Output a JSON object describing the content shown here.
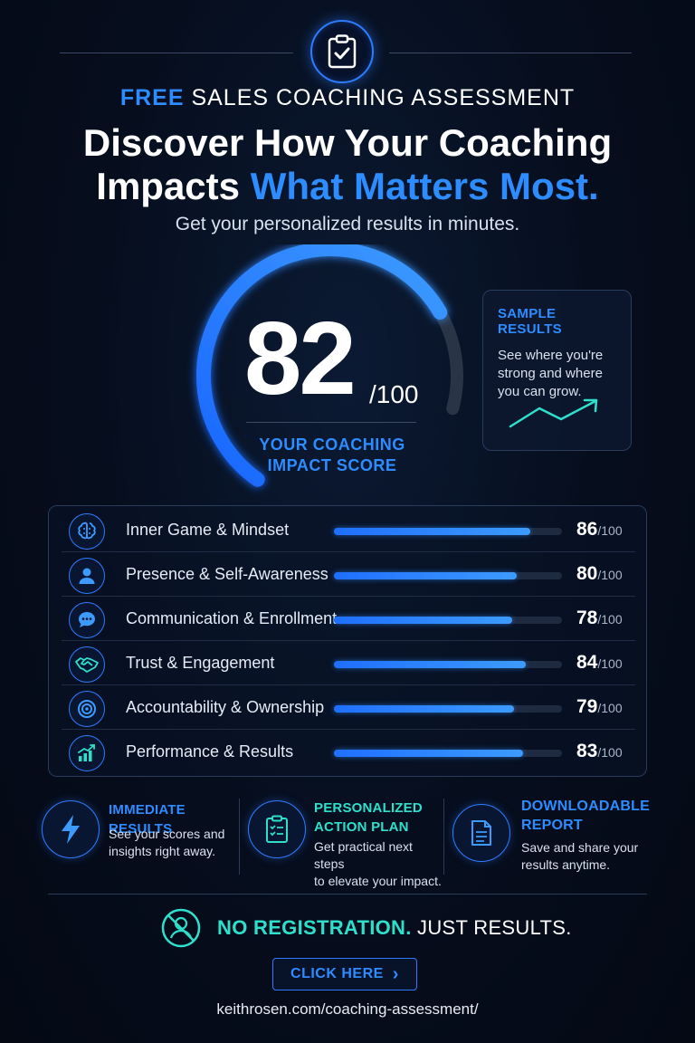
{
  "header": {
    "eyebrow_accent": "FREE",
    "eyebrow_rest": "SALES COACHING ASSESSMENT",
    "headline_line1": "Discover How Your Coaching",
    "headline_line2_white": "Impacts",
    "headline_line2_blue": "What Matters Most.",
    "subhead": "Get your personalized results in minutes."
  },
  "score": {
    "value": "82",
    "max": "/100",
    "fraction": 0.82,
    "label_line1": "YOUR COACHING",
    "label_line2": "IMPACT SCORE"
  },
  "sample": {
    "title": "SAMPLE RESULTS",
    "text": "See where you're strong and where you can grow."
  },
  "metrics": [
    {
      "label": "Inner Game & Mindset",
      "score": "86",
      "max": "/100",
      "value": 86,
      "icon": "brain-icon"
    },
    {
      "label": "Presence & Self-Awareness",
      "score": "80",
      "max": "/100",
      "value": 80,
      "icon": "person-icon"
    },
    {
      "label": "Communication & Enrollment",
      "score": "78",
      "max": "/100",
      "value": 78,
      "icon": "chat-bubble-icon"
    },
    {
      "label": "Trust & Engagement",
      "score": "84",
      "max": "/100",
      "value": 84,
      "icon": "handshake-icon"
    },
    {
      "label": "Accountability & Ownership",
      "score": "79",
      "max": "/100",
      "value": 79,
      "icon": "target-icon"
    },
    {
      "label": "Performance & Results",
      "score": "83",
      "max": "/100",
      "value": 83,
      "icon": "growth-chart-icon"
    }
  ],
  "features": [
    {
      "title_line1": "IMMEDIATE RESULTS",
      "title_line2": "",
      "text_line1": "See your scores and",
      "text_line2": "insights right away.",
      "color": "#2d8cff",
      "icon": "lightning-icon"
    },
    {
      "title_line1": "PERSONALIZED",
      "title_line2": "ACTION PLAN",
      "text_line1": "Get practical next steps",
      "text_line2": "to elevate your impact.",
      "color": "#2ee0cc",
      "icon": "checklist-icon"
    },
    {
      "title_line1": "DOWNLOADABLE",
      "title_line2": "REPORT",
      "text_line1": "Save and share your",
      "text_line2": "results anytime.",
      "color": "#2d8cff",
      "icon": "document-icon"
    }
  ],
  "footer": {
    "no_registration": "NO REGISTRATION.",
    "just_results": "JUST RESULTS.",
    "cta_label": "CLICK HERE",
    "cta_chevron": "›",
    "url": "keithrosen.com/coaching-assessment/"
  },
  "colors": {
    "accent": "#2d8cff",
    "teal": "#2ee0cc",
    "background": "#060d1c"
  }
}
